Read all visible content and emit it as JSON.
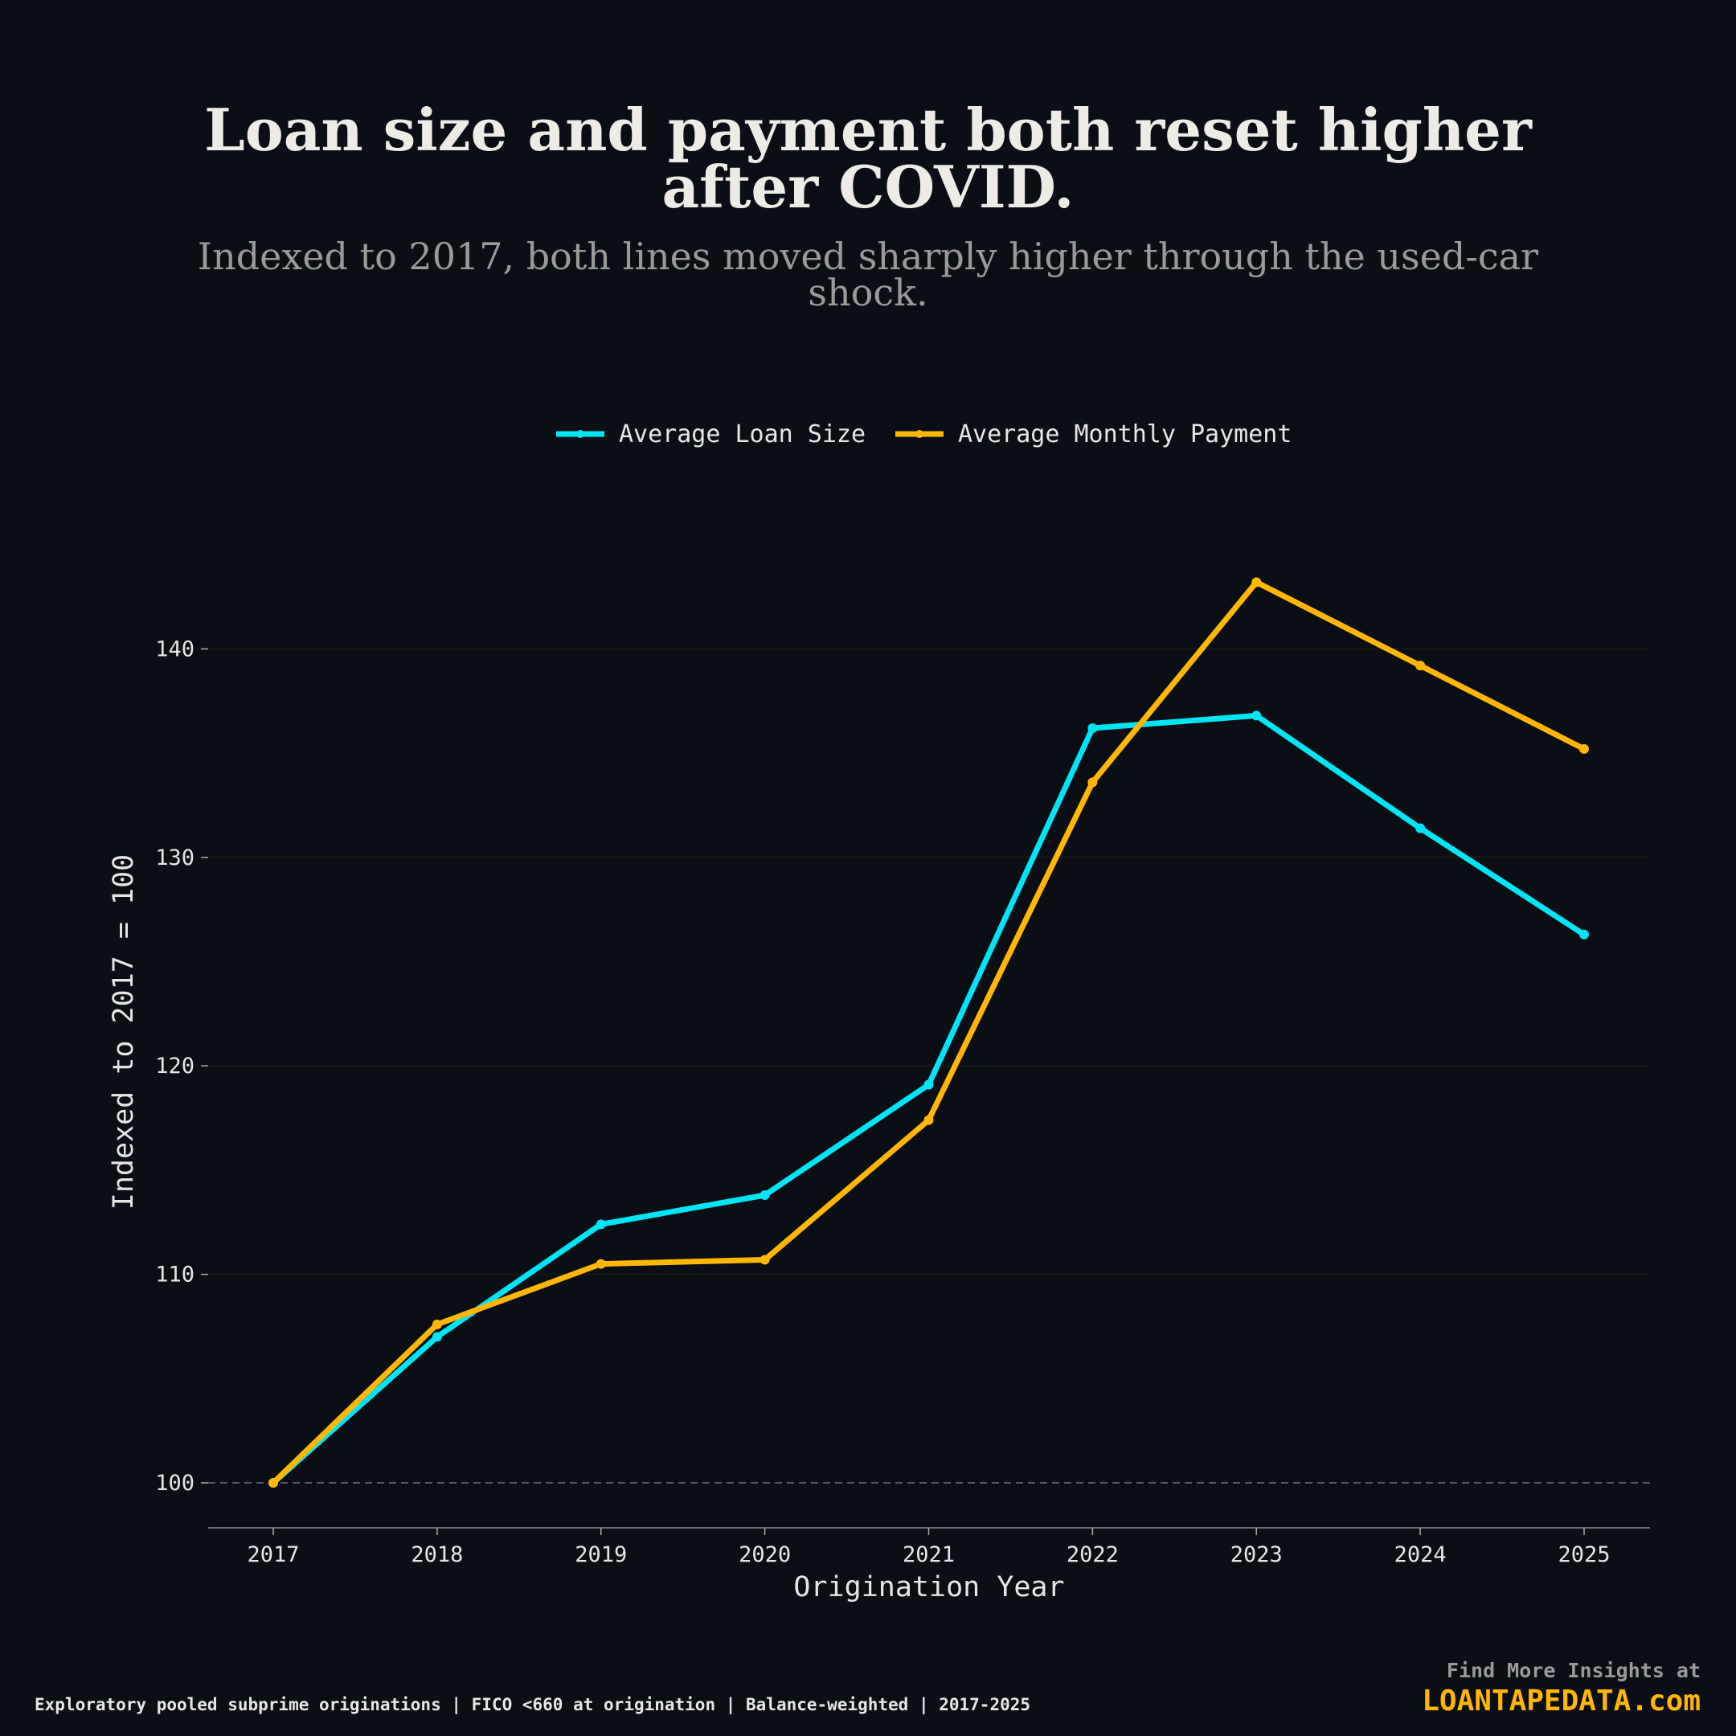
{
  "chart_data": {
    "type": "line",
    "title_lines": [
      "Loan size and payment both reset higher",
      "after COVID."
    ],
    "subtitle_lines": [
      "Indexed to 2017, both lines moved sharply higher through the used-car",
      "shock."
    ],
    "xlabel": "Origination Year",
    "ylabel": "Indexed to 2017 = 100",
    "x": [
      "2017",
      "2018",
      "2019",
      "2020",
      "2021",
      "2022",
      "2023",
      "2024",
      "2025"
    ],
    "yticks": [
      100,
      110,
      120,
      130,
      140
    ],
    "ylim": [
      97.8,
      150
    ],
    "reference_line": 100,
    "legend_position": "top-center",
    "series": [
      {
        "name": "Average Loan Size",
        "color": "#00e5f5",
        "values": [
          100,
          107.0,
          112.4,
          113.8,
          119.1,
          136.2,
          136.8,
          131.4,
          126.3
        ]
      },
      {
        "name": "Average Monthly Payment",
        "color": "#ffb703",
        "values": [
          100,
          107.6,
          110.5,
          110.7,
          117.4,
          133.6,
          143.2,
          139.2,
          135.2
        ]
      }
    ]
  },
  "footer": {
    "note": "Exploratory pooled subprime originations | FICO <660 at origination | Balance-weighted | 2017-2025",
    "cta": "Find More Insights at",
    "brand": "LOANTAPEDATA.com",
    "brand_color": "#ffb703"
  }
}
